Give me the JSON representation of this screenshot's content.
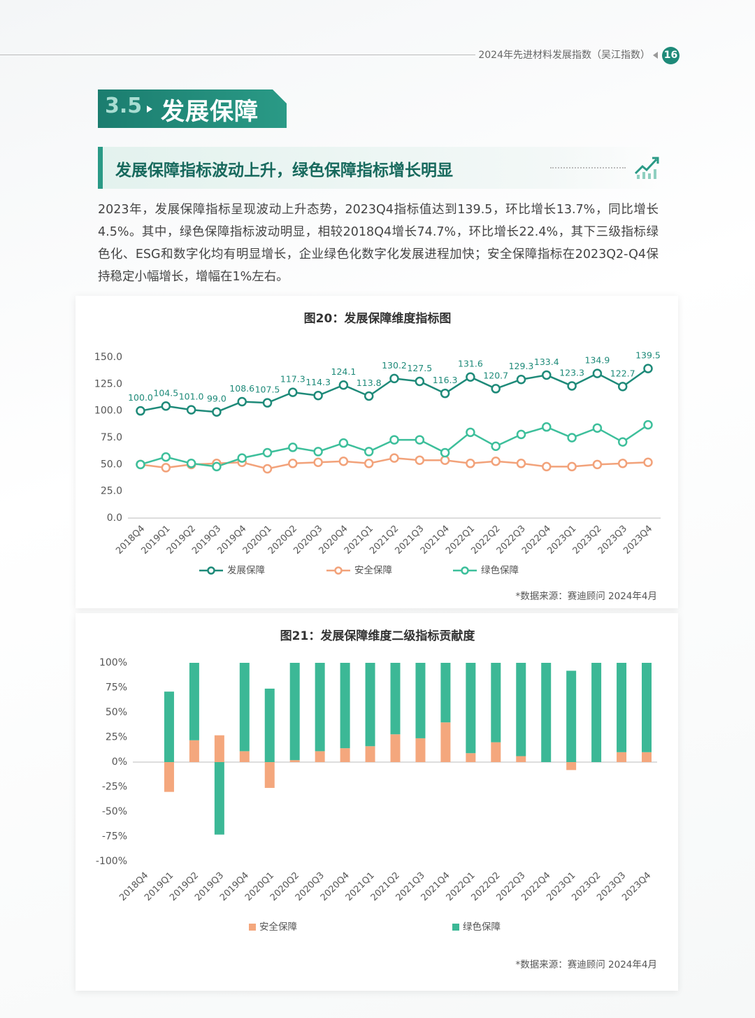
{
  "header": {
    "title": "2024年先进材料发展指数（吴江指数）",
    "page": "16"
  },
  "section": {
    "number": "3.5",
    "title": "发展保障"
  },
  "subheading": "发展保障指标波动上升，绿色保障指标增长明显",
  "paragraph": "2023年，发展保障指标呈现波动上升态势，2023Q4指标值达到139.5，环比增长13.7%，同比增长4.5%。其中，绿色保障指标波动明显，相较2018Q4增长74.7%，环比增长22.4%，其下三级指标绿色化、ESG和数字化均有明显增长，企业绿色化数字化发展进程加快；安全保障指标在2023Q2-Q4保持稳定小幅增长，增幅在1%左右。",
  "chart_data": [
    {
      "type": "line",
      "title": "图20：发展保障维度指标图",
      "categories": [
        "2018Q4",
        "2019Q1",
        "2019Q2",
        "2019Q3",
        "2019Q4",
        "2020Q1",
        "2020Q2",
        "2020Q3",
        "2020Q4",
        "2021Q1",
        "2021Q2",
        "2021Q3",
        "2021Q4",
        "2022Q1",
        "2022Q2",
        "2022Q3",
        "2022Q4",
        "2023Q1",
        "2023Q2",
        "2023Q3",
        "2023Q4"
      ],
      "series": [
        {
          "name": "发展保障",
          "color": "#1e8a79",
          "values": [
            100.0,
            104.5,
            101.0,
            99.0,
            108.6,
            107.5,
            117.3,
            114.3,
            124.1,
            113.8,
            130.2,
            127.5,
            116.3,
            131.6,
            120.7,
            129.3,
            133.4,
            123.3,
            134.9,
            122.7,
            139.5
          ],
          "value_labels": [
            "100.0",
            "104.5",
            "101.0",
            "99.0",
            "108.6",
            "107.5",
            "117.3",
            "114.3",
            "124.1",
            "113.8",
            "130.2",
            "127.5",
            "116.3",
            "131.6",
            "120.7",
            "129.3",
            "133.4",
            "123.3",
            "134.9",
            "122.7",
            "139.5"
          ]
        },
        {
          "name": "安全保障",
          "color": "#f2a27a",
          "values": [
            50,
            47,
            50,
            51,
            52,
            46,
            51,
            52,
            53,
            51,
            56,
            54,
            54,
            51,
            53,
            51,
            48,
            48,
            50,
            51,
            52
          ]
        },
        {
          "name": "绿色保障",
          "color": "#3dbf9b",
          "values": [
            50,
            57,
            51,
            48,
            56,
            61,
            66,
            62,
            70,
            62,
            73,
            73,
            61,
            80,
            67,
            78,
            85,
            75,
            84,
            71,
            87
          ]
        }
      ],
      "ylim": [
        0,
        150
      ],
      "yticks": [
        {
          "value": 0,
          "label": "0.0"
        },
        {
          "value": 25,
          "label": "25.0"
        },
        {
          "value": 50,
          "label": "50.0"
        },
        {
          "value": 75,
          "label": "75.0"
        },
        {
          "value": 100,
          "label": "100.0"
        },
        {
          "value": 125,
          "label": "125.0"
        },
        {
          "value": 150,
          "label": "150.0"
        }
      ],
      "grid": false,
      "legend": "bottom",
      "source": "*数据来源：赛迪顾问 2024年4月"
    },
    {
      "type": "bar",
      "title": "图21：发展保障维度二级指标贡献度",
      "categories": [
        "2018Q4",
        "2019Q1",
        "2019Q2",
        "2019Q3",
        "2019Q4",
        "2020Q1",
        "2020Q2",
        "2020Q3",
        "2020Q4",
        "2021Q1",
        "2021Q2",
        "2021Q3",
        "2021Q4",
        "2022Q1",
        "2022Q2",
        "2022Q3",
        "2022Q4",
        "2023Q1",
        "2023Q2",
        "2023Q3",
        "2023Q4"
      ],
      "series": [
        {
          "name": "安全保障",
          "color": "#f4a77d",
          "values": [
            0,
            -30,
            22,
            27,
            11,
            -26,
            2,
            11,
            14,
            16,
            28,
            24,
            40,
            9,
            20,
            6,
            0,
            -8,
            0,
            10,
            10
          ]
        },
        {
          "name": "绿色保障",
          "color": "#3cb896",
          "values": [
            0,
            71,
            78,
            -73,
            89,
            74,
            98,
            89,
            86,
            84,
            72,
            76,
            60,
            91,
            80,
            94,
            100,
            92,
            100,
            90,
            90
          ]
        }
      ],
      "stacked": true,
      "ylim": [
        -100,
        100
      ],
      "yticks": [
        {
          "value": -100,
          "label": "-100%"
        },
        {
          "value": -75,
          "label": "-75%"
        },
        {
          "value": -50,
          "label": "-50%"
        },
        {
          "value": -25,
          "label": "-25%"
        },
        {
          "value": 0,
          "label": "0%"
        },
        {
          "value": 25,
          "label": "25%"
        },
        {
          "value": 50,
          "label": "50%"
        },
        {
          "value": 75,
          "label": "75%"
        },
        {
          "value": 100,
          "label": "100%"
        }
      ],
      "grid": false,
      "legend": "bottom",
      "source": "*数据来源：赛迪顾问 2024年4月"
    }
  ]
}
